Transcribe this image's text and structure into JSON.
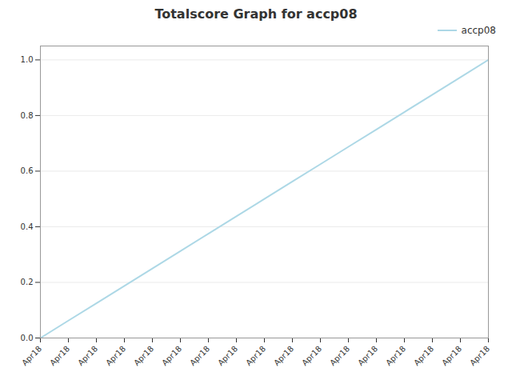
{
  "chart_data": {
    "type": "line",
    "title": "Totalscore Graph for accp08",
    "x": [
      0,
      1,
      2,
      3,
      4,
      5,
      6,
      7,
      8,
      9,
      10,
      11,
      12,
      13,
      14,
      15,
      16
    ],
    "series": [
      {
        "name": "accp08",
        "color": "#add8e6",
        "values": [
          0.0,
          0.0625,
          0.125,
          0.1875,
          0.25,
          0.3125,
          0.375,
          0.4375,
          0.5,
          0.5625,
          0.625,
          0.6875,
          0.75,
          0.8125,
          0.875,
          0.9375,
          1.0
        ]
      }
    ],
    "xlim": [
      0,
      16
    ],
    "xticks": [
      {
        "value": 0,
        "label": "Apr18"
      },
      {
        "value": 1,
        "label": "Apr18"
      },
      {
        "value": 2,
        "label": "Apr18"
      },
      {
        "value": 3,
        "label": "Apr18"
      },
      {
        "value": 4,
        "label": "Apr18"
      },
      {
        "value": 5,
        "label": "Apr18"
      },
      {
        "value": 6,
        "label": "Apr18"
      },
      {
        "value": 7,
        "label": "Apr18"
      },
      {
        "value": 8,
        "label": "Apr18"
      },
      {
        "value": 9,
        "label": "Apr18"
      },
      {
        "value": 10,
        "label": "Apr18"
      },
      {
        "value": 11,
        "label": "Apr18"
      },
      {
        "value": 12,
        "label": "Apr18"
      },
      {
        "value": 13,
        "label": "Apr18"
      },
      {
        "value": 14,
        "label": "Apr18"
      },
      {
        "value": 15,
        "label": "Apr18"
      },
      {
        "value": 16,
        "label": "Apr18"
      }
    ],
    "ylim": [
      0.0,
      1.05
    ],
    "yticks": [
      {
        "value": 0.0,
        "label": "0.0"
      },
      0.2,
      0.4,
      0.6,
      0.8,
      {
        "value": 1.0,
        "label": "1.0"
      }
    ],
    "grid": true,
    "legend": "upper right"
  }
}
